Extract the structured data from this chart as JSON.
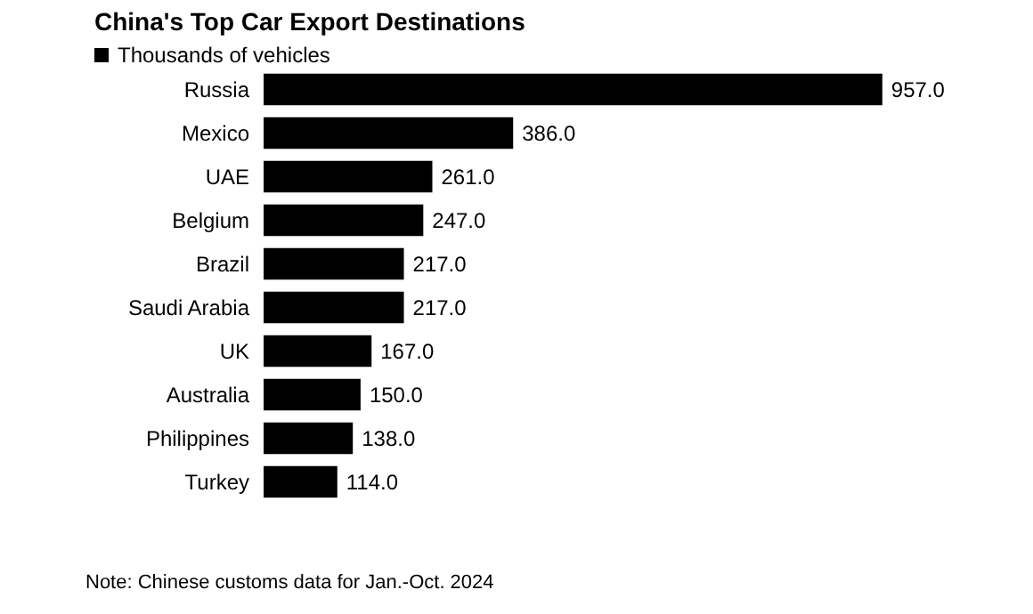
{
  "chart_data": {
    "type": "bar",
    "title": "China's Top Car Export Destinations",
    "orientation": "horizontal",
    "categories": [
      "Russia",
      "Mexico",
      "UAE",
      "Belgium",
      "Brazil",
      "Saudi Arabia",
      "UK",
      "Australia",
      "Philippines",
      "Turkey"
    ],
    "series": [
      {
        "name": "Thousands of vehicles",
        "color": "#000000",
        "values": [
          957.0,
          386.0,
          261.0,
          247.0,
          217.0,
          217.0,
          167.0,
          150.0,
          138.0,
          114.0
        ],
        "value_labels": [
          "957.0",
          "386.0",
          "261.0",
          "247.0",
          "217.0",
          "217.0",
          "167.0",
          "150.0",
          "138.0",
          "114.0"
        ]
      }
    ],
    "legend": "top left",
    "grid": false,
    "annotations": [
      "Note: Chinese customs data for Jan.-Oct. 2024"
    ]
  }
}
